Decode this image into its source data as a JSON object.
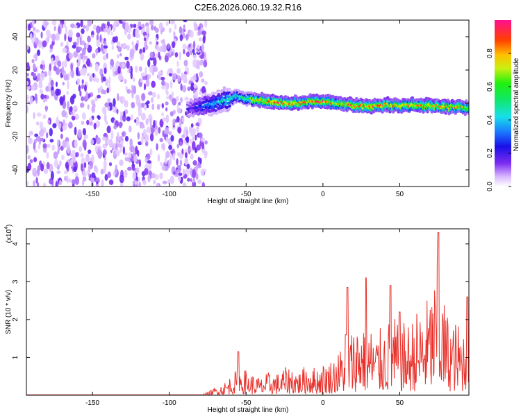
{
  "title": "C2E6.2026.060.19.32.R16",
  "chart_data": [
    {
      "type": "heatmap",
      "xlabel": "Height of straight line (km)",
      "ylabel": "Frequency (Hz)",
      "xlim": [
        -193,
        95
      ],
      "ylim": [
        -50,
        50
      ],
      "xticks": [
        -150,
        -100,
        -50,
        0,
        50
      ],
      "yticks": [
        -40,
        -20,
        0,
        20,
        40
      ],
      "colorbar": {
        "label": "Normalized spectral amplitude",
        "range": [
          0.0,
          1.0
        ],
        "ticks": [
          0.0,
          0.2,
          0.4,
          0.6,
          0.8
        ]
      },
      "noise_region_x": [
        -193,
        -76
      ],
      "ridge": {
        "x": [
          -85,
          -75,
          -70,
          -65,
          -60,
          -55,
          -50,
          -45,
          -40,
          -30,
          -20,
          -10,
          0,
          10,
          20,
          30,
          40,
          50,
          60,
          70,
          80,
          90,
          95
        ],
        "frequency": [
          -3,
          -1,
          0,
          2,
          3,
          4,
          3,
          2,
          2,
          1,
          0,
          1,
          1,
          0,
          -1,
          -2,
          -1,
          -1,
          -1,
          -1,
          -2,
          -2,
          -3
        ],
        "amplitude": [
          0.2,
          0.35,
          0.4,
          0.45,
          0.5,
          0.55,
          0.55,
          0.7,
          0.85,
          0.95,
          0.9,
          0.85,
          0.9,
          0.8,
          0.9,
          0.85,
          0.9,
          0.85,
          0.85,
          0.85,
          0.9,
          0.85,
          0.7
        ]
      }
    },
    {
      "type": "line",
      "xlabel": "Height of straight line (km)",
      "ylabel": "SNR (10 * v/v)",
      "multiplier_label": "(x10",
      "multiplier_exp": "4",
      "xlim": [
        -193,
        95
      ],
      "ylim": [
        0,
        4.4
      ],
      "xticks": [
        -150,
        -100,
        -50,
        0,
        50
      ],
      "yticks": [
        1,
        2,
        3,
        4
      ],
      "color": "#e8312a",
      "envelope": {
        "x": [
          -193,
          -80,
          -75,
          -70,
          -65,
          -60,
          -55,
          -50,
          -45,
          -40,
          -35,
          -30,
          -25,
          -20,
          -15,
          -10,
          -5,
          0,
          5,
          10,
          14,
          18,
          22,
          26,
          30,
          35,
          40,
          45,
          50,
          55,
          60,
          65,
          70,
          73,
          75,
          78,
          80,
          85,
          90,
          95
        ],
        "y": [
          0.01,
          0.01,
          0.08,
          0.2,
          0.3,
          0.5,
          0.7,
          0.65,
          0.5,
          0.45,
          0.6,
          0.55,
          0.7,
          0.75,
          0.6,
          0.85,
          0.7,
          0.8,
          0.9,
          1.1,
          1.4,
          1.6,
          1.9,
          2.0,
          1.8,
          1.6,
          1.8,
          2.0,
          1.9,
          1.8,
          2.1,
          2.3,
          2.6,
          3.0,
          3.5,
          2.6,
          2.2,
          1.9,
          1.8,
          2.0
        ]
      },
      "peaks": [
        {
          "x": -55,
          "y": 1.15
        },
        {
          "x": 15,
          "y": 1.6
        },
        {
          "x": 16,
          "y": 2.85
        },
        {
          "x": 28,
          "y": 3.1
        },
        {
          "x": 44,
          "y": 2.9
        },
        {
          "x": 50,
          "y": 2.2
        },
        {
          "x": 75,
          "y": 4.3
        },
        {
          "x": 94,
          "y": 2.6
        }
      ]
    }
  ]
}
